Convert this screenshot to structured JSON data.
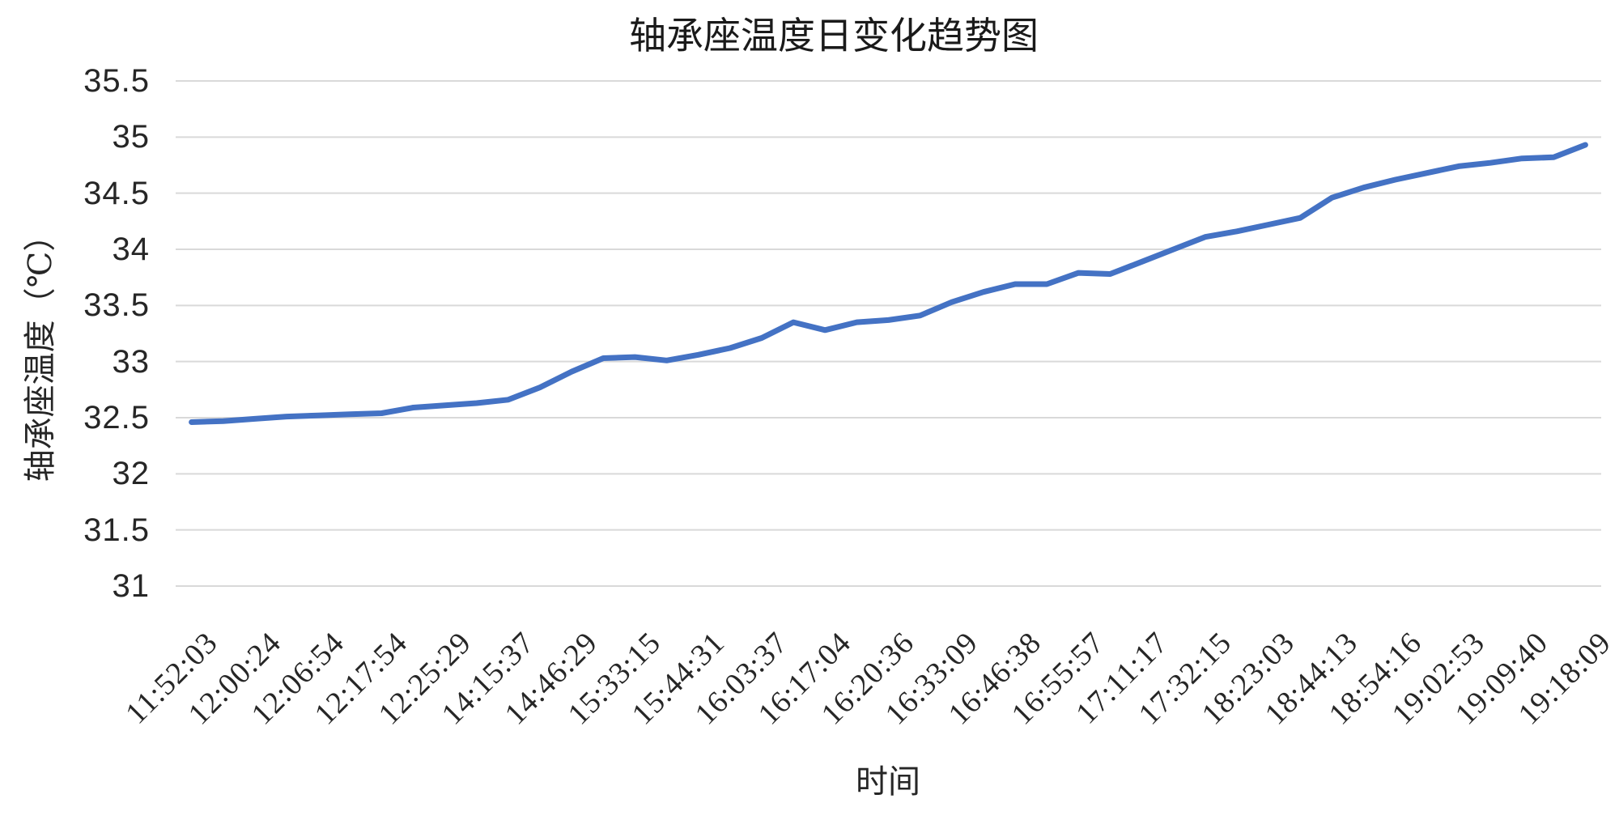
{
  "chart_data": {
    "type": "line",
    "title": "轴承座温度日变化趋势图",
    "xlabel": "时间",
    "ylabel": "轴承座温度（℃）",
    "categories": [
      "11:52:03",
      "12:00:24",
      "12:06:54",
      "12:17:54",
      "12:25:29",
      "14:15:37",
      "14:46:29",
      "15:33:15",
      "15:44:31",
      "16:03:37",
      "16:17:04",
      "16:20:36",
      "16:33:09",
      "16:46:38",
      "16:55:57",
      "17:11:17",
      "17:32:15",
      "18:23:03",
      "18:44:13",
      "18:54:16",
      "19:02:53",
      "19:09:40",
      "19:18:09"
    ],
    "category_values": [
      32.46,
      32.49,
      32.52,
      32.54,
      32.61,
      32.66,
      32.91,
      33.04,
      33.06,
      33.21,
      33.28,
      33.37,
      33.53,
      33.69,
      33.79,
      33.89,
      34.11,
      34.22,
      34.46,
      34.62,
      34.74,
      34.81,
      34.93
    ],
    "values": [
      32.46,
      32.47,
      32.49,
      32.51,
      32.52,
      32.53,
      32.54,
      32.59,
      32.61,
      32.63,
      32.66,
      32.77,
      32.91,
      33.03,
      33.04,
      33.01,
      33.06,
      33.12,
      33.21,
      33.35,
      33.28,
      33.35,
      33.37,
      33.41,
      33.53,
      33.62,
      33.69,
      33.69,
      33.79,
      33.78,
      33.89,
      34.0,
      34.11,
      34.16,
      34.22,
      34.28,
      34.46,
      34.55,
      34.62,
      34.68,
      34.74,
      34.77,
      34.81,
      34.82,
      34.93
    ],
    "x_label_every_n_points": 2,
    "y_tick_labels": [
      "35.5",
      "35",
      "34.5",
      "34",
      "33.5",
      "33",
      "32.5",
      "32",
      "31.5",
      "31"
    ],
    "ylim": [
      31,
      35.5
    ],
    "ytick_step": 0.5,
    "grid": true,
    "legend": false,
    "line_color": "#4472C4",
    "grid_color": "#D9D9D9",
    "text_color": "#262626"
  }
}
